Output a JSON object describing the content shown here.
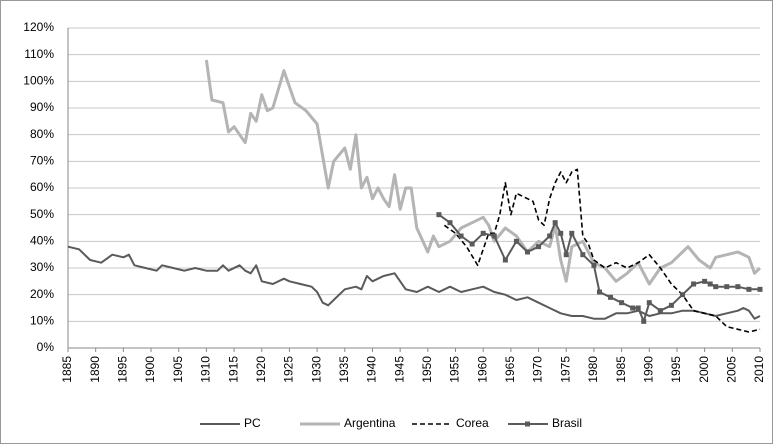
{
  "chart_data": {
    "type": "line",
    "xlim": [
      1885,
      2010
    ],
    "ylim": [
      0,
      120
    ],
    "xticks": [
      1885,
      1890,
      1895,
      1900,
      1905,
      1910,
      1915,
      1920,
      1925,
      1930,
      1935,
      1940,
      1945,
      1950,
      1955,
      1960,
      1965,
      1970,
      1975,
      1980,
      1985,
      1990,
      1995,
      2000,
      2005,
      2010
    ],
    "yticks": [
      {
        "value": 0,
        "label": "0%"
      },
      {
        "value": 10,
        "label": "10%"
      },
      {
        "value": 20,
        "label": "20%"
      },
      {
        "value": 30,
        "label": "30%"
      },
      {
        "value": 40,
        "label": "40%"
      },
      {
        "value": 50,
        "label": "50%"
      },
      {
        "value": 60,
        "label": "60%"
      },
      {
        "value": 70,
        "label": "70%"
      },
      {
        "value": 80,
        "label": "80%"
      },
      {
        "value": 90,
        "label": "90%"
      },
      {
        "value": 100,
        "label": "100%"
      },
      {
        "value": 110,
        "label": "110%"
      },
      {
        "value": 120,
        "label": "120%"
      }
    ],
    "grid": true,
    "legend": "bottom",
    "series": [
      {
        "name": "PC",
        "color": "#5a5a5a",
        "style": "solid",
        "marker": false,
        "x": [
          1885,
          1887,
          1889,
          1891,
          1893,
          1895,
          1896,
          1897,
          1899,
          1901,
          1902,
          1904,
          1906,
          1908,
          1910,
          1912,
          1913,
          1914,
          1916,
          1917,
          1918,
          1919,
          1920,
          1922,
          1924,
          1925,
          1927,
          1929,
          1930,
          1931,
          1932,
          1933,
          1935,
          1937,
          1938,
          1939,
          1940,
          1942,
          1944,
          1946,
          1948,
          1950,
          1952,
          1954,
          1956,
          1958,
          1960,
          1962,
          1964,
          1966,
          1968,
          1970,
          1972,
          1974,
          1976,
          1978,
          1980,
          1982,
          1984,
          1986,
          1988,
          1989,
          1990,
          1992,
          1994,
          1996,
          1998,
          2000,
          2002,
          2004,
          2006,
          2007,
          2008,
          2009,
          2010
        ],
        "values": [
          38,
          37,
          33,
          32,
          35,
          34,
          35,
          31,
          30,
          29,
          31,
          30,
          29,
          30,
          29,
          29,
          31,
          29,
          31,
          29,
          28,
          31,
          25,
          24,
          26,
          25,
          24,
          23,
          21,
          17,
          16,
          18,
          22,
          23,
          22,
          27,
          25,
          27,
          28,
          22,
          21,
          23,
          21,
          23,
          21,
          22,
          23,
          21,
          20,
          18,
          19,
          17,
          15,
          13,
          12,
          12,
          11,
          11,
          13,
          13,
          14,
          13,
          12,
          13,
          13,
          14,
          14,
          13,
          12,
          13,
          14,
          15,
          14,
          11,
          12
        ]
      },
      {
        "name": "Argentina",
        "color": "#b4b4b4",
        "style": "thick",
        "marker": false,
        "x": [
          1910,
          1911,
          1913,
          1914,
          1915,
          1917,
          1918,
          1919,
          1920,
          1921,
          1922,
          1924,
          1926,
          1928,
          1930,
          1932,
          1933,
          1935,
          1936,
          1937,
          1938,
          1939,
          1940,
          1941,
          1942,
          1943,
          1944,
          1945,
          1946,
          1947,
          1948,
          1950,
          1951,
          1952,
          1954,
          1956,
          1958,
          1960,
          1961,
          1962,
          1964,
          1966,
          1968,
          1970,
          1972,
          1973,
          1974,
          1975,
          1976,
          1978,
          1980,
          1982,
          1984,
          1986,
          1988,
          1990,
          1992,
          1994,
          1996,
          1997,
          1999,
          2001,
          2002,
          2004,
          2006,
          2008,
          2009,
          2010
        ],
        "values": [
          108,
          93,
          92,
          81,
          83,
          77,
          88,
          85,
          95,
          89,
          90,
          104,
          92,
          89,
          84,
          60,
          70,
          75,
          67,
          80,
          60,
          64,
          56,
          60,
          56,
          53,
          65,
          52,
          60,
          60,
          45,
          36,
          42,
          38,
          40,
          45,
          47,
          49,
          46,
          40,
          45,
          42,
          36,
          40,
          38,
          46,
          33,
          25,
          38,
          40,
          32,
          30,
          25,
          28,
          32,
          24,
          30,
          32,
          36,
          38,
          33,
          30,
          34,
          35,
          36,
          34,
          28,
          30
        ]
      },
      {
        "name": "Corea",
        "color": "#000000",
        "style": "dashed",
        "marker": false,
        "x": [
          1953,
          1955,
          1957,
          1959,
          1961,
          1962,
          1963,
          1964,
          1965,
          1966,
          1968,
          1969,
          1970,
          1971,
          1972,
          1973,
          1974,
          1975,
          1976,
          1977,
          1978,
          1979,
          1980,
          1982,
          1984,
          1986,
          1988,
          1990,
          1992,
          1994,
          1996,
          1998,
          2000,
          2002,
          2004,
          2006,
          2008,
          2010
        ],
        "values": [
          46,
          43,
          38,
          31,
          43,
          43,
          50,
          62,
          50,
          58,
          56,
          55,
          48,
          46,
          56,
          62,
          66,
          62,
          66,
          67,
          42,
          39,
          33,
          30,
          32,
          30,
          32,
          35,
          30,
          24,
          20,
          14,
          13,
          12,
          8,
          7,
          6,
          7
        ]
      },
      {
        "name": "Brasil",
        "color": "#5a5a5a",
        "style": "solid",
        "marker": true,
        "x": [
          1952,
          1954,
          1956,
          1958,
          1960,
          1962,
          1964,
          1966,
          1968,
          1970,
          1972,
          1973,
          1974,
          1975,
          1976,
          1978,
          1980,
          1981,
          1983,
          1985,
          1987,
          1988,
          1989,
          1990,
          1992,
          1994,
          1996,
          1998,
          2000,
          2001,
          2002,
          2004,
          2006,
          2008,
          2010
        ],
        "values": [
          50,
          47,
          42,
          39,
          43,
          42,
          33,
          40,
          36,
          38,
          42,
          47,
          43,
          35,
          43,
          35,
          31,
          21,
          19,
          17,
          15,
          15,
          10,
          17,
          14,
          16,
          20,
          24,
          25,
          24,
          23,
          23,
          23,
          22,
          22
        ]
      }
    ]
  }
}
